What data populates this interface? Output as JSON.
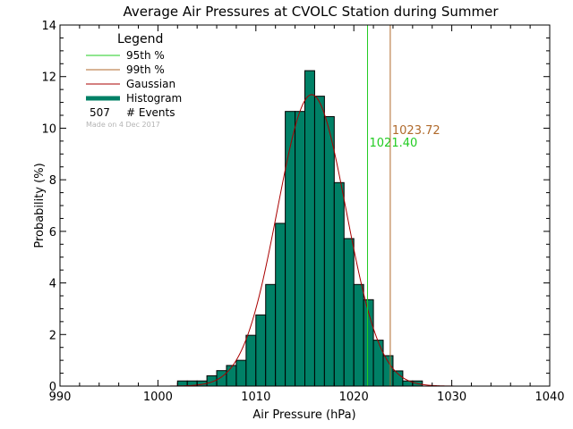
{
  "chart_data": {
    "type": "bar",
    "title": "Average Air Pressures at CVOLC Station during Summer",
    "xlabel": "Air Pressure (hPa)",
    "ylabel": "Probability (%)",
    "xlim": [
      990,
      1040
    ],
    "ylim": [
      0,
      14
    ],
    "x_ticks": [
      "990",
      "1000",
      "1010",
      "1020",
      "1030",
      "1040"
    ],
    "y_ticks": [
      "0",
      "2",
      "4",
      "6",
      "8",
      "10",
      "12",
      "14"
    ],
    "bin_width": 1,
    "bins": [
      {
        "x": 1002,
        "y": 0.2
      },
      {
        "x": 1003,
        "y": 0.2
      },
      {
        "x": 1004,
        "y": 0.2
      },
      {
        "x": 1005,
        "y": 0.4
      },
      {
        "x": 1006,
        "y": 0.6
      },
      {
        "x": 1007,
        "y": 0.8
      },
      {
        "x": 1008,
        "y": 1.0
      },
      {
        "x": 1009,
        "y": 1.97
      },
      {
        "x": 1010,
        "y": 2.76
      },
      {
        "x": 1011,
        "y": 3.94
      },
      {
        "x": 1012,
        "y": 6.31
      },
      {
        "x": 1013,
        "y": 10.65
      },
      {
        "x": 1014,
        "y": 10.65
      },
      {
        "x": 1015,
        "y": 12.23
      },
      {
        "x": 1016,
        "y": 11.24
      },
      {
        "x": 1017,
        "y": 10.45
      },
      {
        "x": 1018,
        "y": 7.89
      },
      {
        "x": 1019,
        "y": 5.72
      },
      {
        "x": 1020,
        "y": 3.94
      },
      {
        "x": 1021,
        "y": 3.35
      },
      {
        "x": 1022,
        "y": 1.78
      },
      {
        "x": 1023,
        "y": 1.18
      },
      {
        "x": 1024,
        "y": 0.59
      },
      {
        "x": 1025,
        "y": 0.2
      },
      {
        "x": 1026,
        "y": 0.2
      }
    ],
    "gaussian": {
      "mean": 1015.7,
      "sigma": 3.5,
      "peak": 11.3
    },
    "percentiles": [
      {
        "name": "95th %",
        "value": 1021.4,
        "label": "1021.40",
        "color": "#22cc22"
      },
      {
        "name": "99th %",
        "value": 1023.72,
        "label": "1023.72",
        "color": "#b06a2c"
      }
    ],
    "legend": {
      "title": "Legend",
      "placement": "top-left",
      "items": [
        {
          "label": "95th %",
          "color": "#22cc22"
        },
        {
          "label": "99th %",
          "color": "#b06a2c"
        },
        {
          "label": "Gaussian",
          "color": "#aa0000"
        },
        {
          "label": "Histogram",
          "color": "#008066"
        }
      ],
      "events_count": "507",
      "events_label": "# Events"
    },
    "watermark": "Made on 4 Dec 2017",
    "histogram_color": "#008066",
    "gaussian_color": "#aa0000"
  }
}
